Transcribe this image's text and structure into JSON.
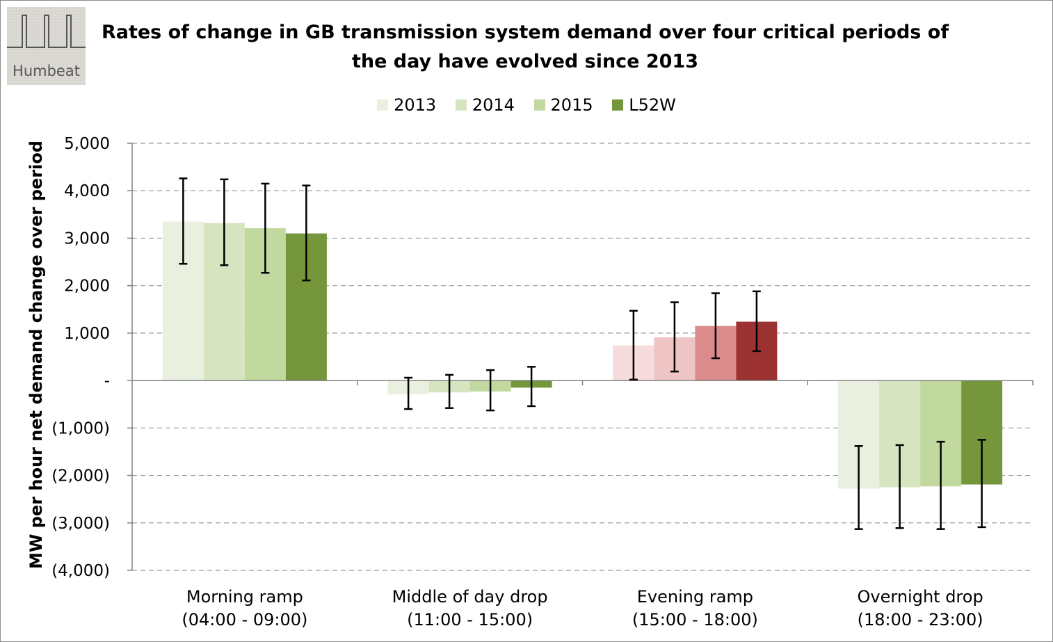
{
  "logo": {
    "text": "Humbeat"
  },
  "chart_data": {
    "type": "bar",
    "title_lines": [
      "Rates of change in GB transmission system demand over four critical periods of",
      "the day have evolved since 2013"
    ],
    "ylabel": "MW per hour net demand change over period",
    "xlabel": "",
    "ylim": [
      -4000,
      5000
    ],
    "yticks": [
      5000,
      4000,
      3000,
      2000,
      1000,
      0,
      -1000,
      -2000,
      -3000,
      -4000
    ],
    "ytick_labels": [
      "5,000",
      "4,000",
      "3,000",
      "2,000",
      "1,000",
      "-",
      "(1,000)",
      "(2,000)",
      "(3,000)",
      "(4,000)"
    ],
    "grid": true,
    "legend_position": "top-center",
    "categories": [
      [
        "Morning ramp",
        "(04:00 - 09:00)"
      ],
      [
        "Middle of day drop",
        "(11:00 - 15:00)"
      ],
      [
        "Evening ramp",
        "(15:00 - 18:00)"
      ],
      [
        "Overnight drop",
        "(18:00 - 23:00)"
      ]
    ],
    "series": [
      {
        "name": "2013",
        "values": [
          3350,
          -290,
          740,
          -2280
        ],
        "error_low": [
          2460,
          -600,
          20,
          -3130
        ],
        "error_high": [
          4260,
          60,
          1470,
          -1380
        ]
      },
      {
        "name": "2014",
        "values": [
          3320,
          -250,
          910,
          -2250
        ],
        "error_low": [
          2430,
          -580,
          190,
          -3110
        ],
        "error_high": [
          4240,
          120,
          1650,
          -1360
        ]
      },
      {
        "name": "2015",
        "values": [
          3210,
          -230,
          1150,
          -2230
        ],
        "error_low": [
          2270,
          -630,
          470,
          -3130
        ],
        "error_high": [
          4150,
          220,
          1840,
          -1290
        ]
      },
      {
        "name": "L52W",
        "values": [
          3100,
          -150,
          1240,
          -2190
        ],
        "error_low": [
          2110,
          -540,
          620,
          -3090
        ],
        "error_high": [
          4110,
          290,
          1880,
          -1250
        ]
      }
    ],
    "legend_colors": [
      "#eaf0df",
      "#d6e5c0",
      "#c1d99e",
      "#76963b"
    ],
    "green_colors": [
      "#eaf0df",
      "#d6e5c0",
      "#c1d99e",
      "#76963b"
    ],
    "red_colors": [
      "#f6dcdc",
      "#eec4c4",
      "#db8b8b",
      "#9c3232"
    ],
    "red_categories": [
      2
    ]
  }
}
